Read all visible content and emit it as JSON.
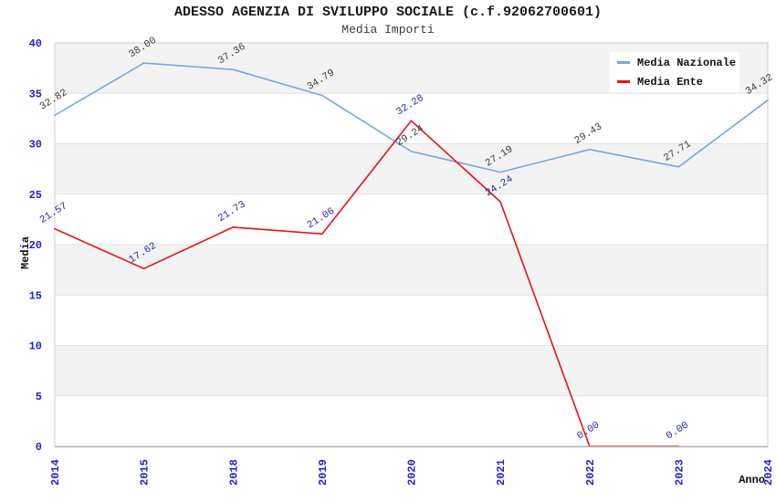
{
  "title": "ADESSO AGENZIA DI SVILUPPO SOCIALE (c.f.92062700601)",
  "subtitle": "Media Importi",
  "chart_data": {
    "type": "line",
    "categories": [
      "2014",
      "2015",
      "2018",
      "2019",
      "2020",
      "2021",
      "2022",
      "2023",
      "2024"
    ],
    "series": [
      {
        "name": "Media Nazionale",
        "color": "#74a9e4",
        "label_color": "#3c3c3c",
        "values": [
          32.82,
          38.0,
          37.36,
          34.79,
          29.24,
          27.19,
          29.43,
          27.71,
          34.32
        ]
      },
      {
        "name": "Media Ente",
        "color": "#ee1111",
        "label_color": "#2a2aa4",
        "values": [
          21.57,
          17.62,
          21.73,
          21.06,
          32.28,
          24.24,
          0.0,
          0.0,
          null
        ]
      }
    ],
    "xlabel": "Anno",
    "ylabel": "Media",
    "ylim": [
      0,
      40
    ],
    "ytick_step": 5,
    "grid": "horizontal-stripes",
    "legend_position": "top-right",
    "colors": {
      "stripe_fill": "#f3f3f3",
      "gridline": "#e3e3e3",
      "plot_border": "#cfcfcf",
      "bottom_axis": "#b8b8b8",
      "tick_label": "#2222cc",
      "axis_title": "#111111"
    }
  }
}
